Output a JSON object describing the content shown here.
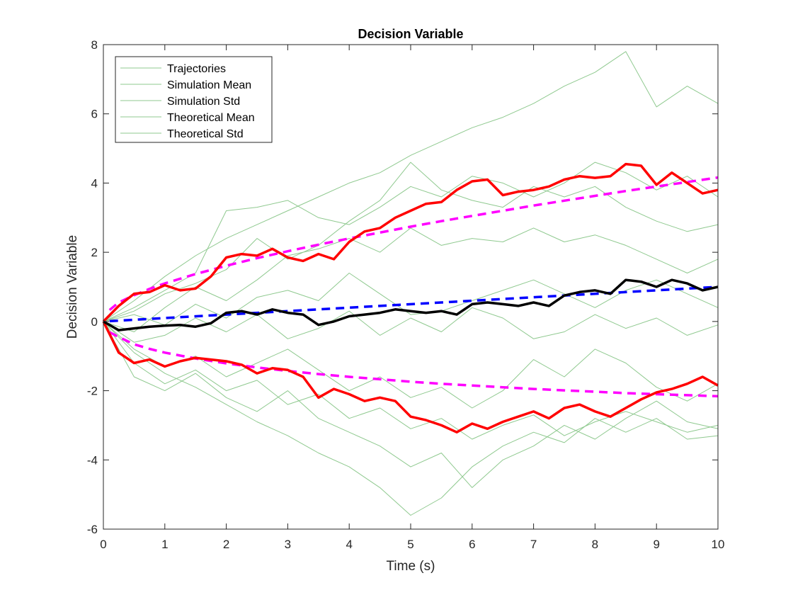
{
  "chart_data": {
    "type": "line",
    "title": "Decision Variable",
    "xlabel": "Time (s)",
    "ylabel": "Decision Variable",
    "xlim": [
      0,
      10
    ],
    "ylim": [
      -6,
      8
    ],
    "xticks": [
      0,
      1,
      2,
      3,
      4,
      5,
      6,
      7,
      8,
      9,
      10
    ],
    "yticks": [
      -6,
      -4,
      -2,
      0,
      2,
      4,
      6,
      8
    ],
    "grid": false,
    "legend_position": "top-left",
    "legend": [
      "Trajectories",
      "Simulation Mean",
      "Simulation Std",
      "Theoretical Mean",
      "Theoretical Std"
    ],
    "colors": {
      "trajectories": "#8fc98f",
      "simulation_mean": "#000000",
      "simulation_std": "#ff0000",
      "theoretical_mean": "#0000ff",
      "theoretical_std": "#ff00ff"
    },
    "trajectories": [
      {
        "x": [
          0,
          0.5,
          1,
          1.5,
          2,
          2.5,
          3,
          3.5,
          4,
          4.5,
          5,
          5.5,
          6,
          6.5,
          7,
          7.5,
          8,
          8.5,
          9,
          9.5,
          10
        ],
        "y": [
          0,
          0.6,
          1.3,
          1.9,
          2.4,
          2.8,
          3.2,
          3.6,
          4.0,
          4.3,
          4.8,
          5.2,
          5.6,
          5.9,
          6.3,
          6.8,
          7.2,
          7.8,
          6.2,
          6.8,
          6.3
        ]
      },
      {
        "x": [
          0,
          0.5,
          1,
          1.5,
          2,
          2.5,
          3,
          3.5,
          4,
          4.5,
          5,
          5.5,
          6,
          6.5,
          7,
          7.5,
          8,
          8.5,
          9,
          9.5,
          10
        ],
        "y": [
          0,
          0.4,
          0.9,
          1.4,
          3.2,
          3.3,
          3.5,
          3.0,
          2.8,
          3.3,
          3.9,
          3.6,
          4.2,
          4.0,
          3.6,
          4.0,
          4.6,
          4.3,
          3.8,
          4.2,
          3.6
        ]
      },
      {
        "x": [
          0,
          0.5,
          1,
          1.5,
          2,
          2.5,
          3,
          3.5,
          4,
          4.5,
          5,
          5.5,
          6,
          6.5,
          7,
          7.5,
          8,
          8.5,
          9,
          9.5,
          10
        ],
        "y": [
          0,
          0.3,
          0.8,
          1.1,
          1.5,
          2.4,
          1.8,
          2.2,
          2.9,
          3.5,
          4.6,
          3.8,
          3.5,
          3.3,
          3.9,
          3.6,
          3.9,
          3.3,
          2.9,
          2.6,
          2.8
        ]
      },
      {
        "x": [
          0,
          0.5,
          1,
          1.5,
          2,
          2.5,
          3,
          3.5,
          4,
          4.5,
          5,
          5.5,
          6,
          6.5,
          7,
          7.5,
          8,
          8.5,
          9,
          9.5,
          10
        ],
        "y": [
          0,
          -0.3,
          0.4,
          1.0,
          0.6,
          1.2,
          1.9,
          2.1,
          2.4,
          2.0,
          2.7,
          2.2,
          2.4,
          2.3,
          2.7,
          2.3,
          2.5,
          2.2,
          1.8,
          1.4,
          1.8
        ]
      },
      {
        "x": [
          0,
          0.5,
          1,
          1.5,
          2,
          2.5,
          3,
          3.5,
          4,
          4.5,
          5,
          5.5,
          6,
          6.5,
          7,
          7.5,
          8,
          8.5,
          9,
          9.5,
          10
        ],
        "y": [
          0,
          0.2,
          -0.1,
          0.5,
          0.1,
          0.7,
          0.9,
          0.6,
          1.4,
          0.8,
          0.2,
          0.3,
          0.6,
          0.9,
          1.2,
          0.8,
          0.4,
          0.9,
          1.2,
          0.8,
          0.4
        ]
      },
      {
        "x": [
          0,
          0.5,
          1,
          1.5,
          2,
          2.5,
          3,
          3.5,
          4,
          4.5,
          5,
          5.5,
          6,
          6.5,
          7,
          7.5,
          8,
          8.5,
          9,
          9.5,
          10
        ],
        "y": [
          0,
          -0.6,
          -0.4,
          0.1,
          -0.3,
          0.2,
          -0.5,
          -0.2,
          0.3,
          -0.4,
          0.1,
          -0.3,
          0.4,
          0.1,
          -0.5,
          -0.3,
          0.2,
          -0.2,
          0.1,
          -0.4,
          -0.1
        ]
      },
      {
        "x": [
          0,
          0.5,
          1,
          1.5,
          2,
          2.5,
          3,
          3.5,
          4,
          4.5,
          5,
          5.5,
          6,
          6.5,
          7,
          7.5,
          8,
          8.5,
          9,
          9.5,
          10
        ],
        "y": [
          0,
          -0.8,
          -1.3,
          -1.0,
          -1.6,
          -1.2,
          -0.8,
          -1.4,
          -2.0,
          -1.6,
          -2.2,
          -1.9,
          -2.5,
          -2.0,
          -1.1,
          -1.6,
          -0.8,
          -1.2,
          -1.9,
          -2.3,
          -1.8
        ]
      },
      {
        "x": [
          0,
          0.5,
          1,
          1.5,
          2,
          2.5,
          3,
          3.5,
          4,
          4.5,
          5,
          5.5,
          6,
          6.5,
          7,
          7.5,
          8,
          8.5,
          9,
          9.5,
          10
        ],
        "y": [
          0,
          -1.2,
          -1.8,
          -1.4,
          -2.0,
          -1.7,
          -2.4,
          -2.1,
          -2.8,
          -2.5,
          -3.1,
          -2.8,
          -3.4,
          -3.0,
          -2.7,
          -3.3,
          -2.9,
          -2.6,
          -2.9,
          -3.2,
          -3.0
        ]
      },
      {
        "x": [
          0,
          0.5,
          1,
          1.5,
          2,
          2.5,
          3,
          3.5,
          4,
          4.5,
          5,
          5.5,
          6,
          6.5,
          7,
          7.5,
          8,
          8.5,
          9,
          9.5,
          10
        ],
        "y": [
          0,
          -1.6,
          -2.0,
          -1.5,
          -2.2,
          -2.6,
          -2.0,
          -2.8,
          -3.2,
          -3.6,
          -4.2,
          -3.8,
          -4.8,
          -4.0,
          -3.6,
          -3.0,
          -3.4,
          -2.8,
          -2.3,
          -2.9,
          -3.1
        ]
      },
      {
        "x": [
          0,
          0.5,
          1,
          1.5,
          2,
          2.5,
          3,
          3.5,
          4,
          4.5,
          5,
          5.5,
          6,
          6.5,
          7,
          7.5,
          8,
          8.5,
          9,
          9.5,
          10
        ],
        "y": [
          0,
          -0.9,
          -1.5,
          -1.9,
          -2.4,
          -2.9,
          -3.3,
          -3.8,
          -4.2,
          -4.8,
          -5.6,
          -5.1,
          -4.2,
          -3.6,
          -3.2,
          -3.5,
          -2.8,
          -3.2,
          -2.8,
          -3.4,
          -3.3
        ]
      }
    ],
    "series": [
      {
        "name": "Simulation Mean",
        "style": "solid",
        "x": [
          0,
          0.25,
          0.5,
          0.75,
          1,
          1.25,
          1.5,
          1.75,
          2,
          2.25,
          2.5,
          2.75,
          3,
          3.25,
          3.5,
          3.75,
          4,
          4.25,
          4.5,
          4.75,
          5,
          5.25,
          5.5,
          5.75,
          6,
          6.25,
          6.5,
          6.75,
          7,
          7.25,
          7.5,
          7.75,
          8,
          8.25,
          8.5,
          8.75,
          9,
          9.25,
          9.5,
          9.75,
          10
        ],
        "y": [
          0,
          -0.25,
          -0.2,
          -0.15,
          -0.12,
          -0.1,
          -0.15,
          -0.05,
          0.25,
          0.3,
          0.2,
          0.35,
          0.25,
          0.2,
          -0.1,
          0.0,
          0.15,
          0.2,
          0.25,
          0.35,
          0.3,
          0.25,
          0.3,
          0.2,
          0.5,
          0.55,
          0.5,
          0.45,
          0.55,
          0.45,
          0.75,
          0.85,
          0.9,
          0.8,
          1.2,
          1.15,
          1.0,
          1.2,
          1.1,
          0.9,
          1.0
        ]
      },
      {
        "name": "Simulation Std",
        "style": "solid",
        "x": [
          0,
          0.25,
          0.5,
          0.75,
          1,
          1.25,
          1.5,
          1.75,
          2,
          2.25,
          2.5,
          2.75,
          3,
          3.25,
          3.5,
          3.75,
          4,
          4.25,
          4.5,
          4.75,
          5,
          5.25,
          5.5,
          5.75,
          6,
          6.25,
          6.5,
          6.75,
          7,
          7.25,
          7.5,
          7.75,
          8,
          8.25,
          8.5,
          8.75,
          9,
          9.25,
          9.5,
          9.75,
          10
        ],
        "y": [
          0,
          0.45,
          0.8,
          0.85,
          1.05,
          0.9,
          0.95,
          1.3,
          1.85,
          1.95,
          1.9,
          2.1,
          1.85,
          1.75,
          1.95,
          1.8,
          2.3,
          2.6,
          2.7,
          3.0,
          3.2,
          3.4,
          3.45,
          3.8,
          4.05,
          4.1,
          3.65,
          3.75,
          3.8,
          3.9,
          4.1,
          4.2,
          4.15,
          4.2,
          4.55,
          4.5,
          3.95,
          4.3,
          4.0,
          3.7,
          3.8
        ]
      },
      {
        "name": "Simulation Std",
        "style": "solid",
        "x": [
          0,
          0.25,
          0.5,
          0.75,
          1,
          1.25,
          1.5,
          1.75,
          2,
          2.25,
          2.5,
          2.75,
          3,
          3.25,
          3.5,
          3.75,
          4,
          4.25,
          4.5,
          4.75,
          5,
          5.25,
          5.5,
          5.75,
          6,
          6.25,
          6.5,
          6.75,
          7,
          7.25,
          7.5,
          7.75,
          8,
          8.25,
          8.5,
          8.75,
          9,
          9.25,
          9.5,
          9.75,
          10
        ],
        "y": [
          0,
          -0.9,
          -1.2,
          -1.1,
          -1.3,
          -1.15,
          -1.05,
          -1.1,
          -1.15,
          -1.25,
          -1.5,
          -1.35,
          -1.4,
          -1.6,
          -2.2,
          -1.95,
          -2.1,
          -2.3,
          -2.2,
          -2.3,
          -2.75,
          -2.85,
          -3.0,
          -3.2,
          -2.95,
          -3.1,
          -2.9,
          -2.75,
          -2.6,
          -2.8,
          -2.5,
          -2.4,
          -2.6,
          -2.75,
          -2.5,
          -2.25,
          -2.05,
          -1.95,
          -1.8,
          -1.6,
          -1.85
        ]
      },
      {
        "name": "Theoretical Mean",
        "style": "dashed",
        "x": [
          0.1,
          10
        ],
        "y": [
          0.01,
          1.0
        ]
      },
      {
        "name": "Theoretical Std",
        "style": "dashed",
        "x": [
          0.1,
          0.25,
          0.5,
          0.75,
          1,
          1.5,
          2,
          2.5,
          3,
          3.5,
          4,
          4.5,
          5,
          5.5,
          6,
          6.5,
          7,
          7.5,
          8,
          8.5,
          9,
          9.5,
          10
        ],
        "y": [
          0.33,
          0.55,
          0.76,
          0.94,
          1.1,
          1.37,
          1.61,
          1.83,
          2.03,
          2.22,
          2.4,
          2.57,
          2.74,
          2.9,
          3.05,
          3.2,
          3.35,
          3.49,
          3.63,
          3.77,
          3.9,
          4.03,
          4.16
        ]
      },
      {
        "name": "Theoretical Std",
        "style": "dashed",
        "x": [
          0.1,
          0.25,
          0.5,
          0.75,
          1,
          1.5,
          2,
          2.5,
          3,
          3.5,
          4,
          4.5,
          5,
          5.5,
          6,
          6.5,
          7,
          7.5,
          8,
          8.5,
          9,
          9.5,
          10
        ],
        "y": [
          -0.31,
          -0.45,
          -0.66,
          -0.79,
          -0.9,
          -1.07,
          -1.21,
          -1.33,
          -1.43,
          -1.52,
          -1.6,
          -1.67,
          -1.74,
          -1.8,
          -1.85,
          -1.9,
          -1.95,
          -1.99,
          -2.03,
          -2.07,
          -2.1,
          -2.13,
          -2.16
        ]
      }
    ]
  }
}
